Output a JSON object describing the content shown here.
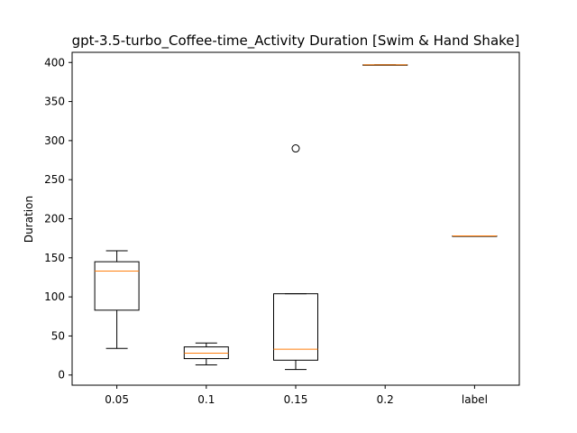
{
  "chart_data": {
    "type": "box",
    "title": "gpt-3.5-turbo_Coffee-time_Activity Duration [Swim & Hand Shake]",
    "xlabel": "",
    "ylabel": "Duration",
    "ylim": [
      -13,
      413
    ],
    "yticks": [
      0,
      50,
      100,
      150,
      200,
      250,
      300,
      350,
      400
    ],
    "categories": [
      "0.05",
      "0.1",
      "0.15",
      "0.2",
      "label"
    ],
    "boxes": [
      {
        "whisker_low": 34,
        "q1": 83,
        "median": 133,
        "q3": 145,
        "whisker_high": 159,
        "outliers": []
      },
      {
        "whisker_low": 13,
        "q1": 21,
        "median": 28,
        "q3": 36,
        "whisker_high": 41,
        "outliers": []
      },
      {
        "whisker_low": 7,
        "q1": 19,
        "median": 33,
        "q3": 104,
        "whisker_high": 104,
        "outliers": [
          290
        ]
      },
      {
        "whisker_low": 397,
        "q1": 397,
        "median": 397,
        "q3": 397,
        "whisker_high": 397,
        "outliers": []
      },
      {
        "whisker_low": 178,
        "q1": 178,
        "median": 178,
        "q3": 178,
        "whisker_high": 178,
        "outliers": []
      }
    ],
    "grid": false,
    "colors": {
      "box": "#000000",
      "median": "#ff7f0e",
      "outlier": "#000000"
    }
  }
}
